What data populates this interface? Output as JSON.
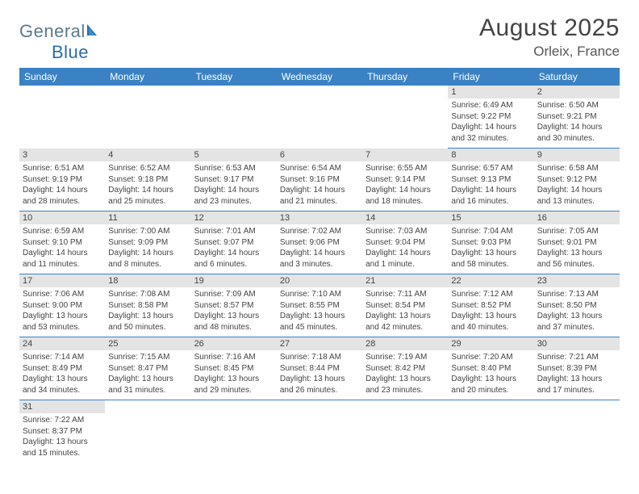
{
  "brand": {
    "name_part1": "General",
    "name_part2": "Blue"
  },
  "header": {
    "title": "August 2025",
    "location": "Orleix, France"
  },
  "colors": {
    "header_bg": "#3a82c4",
    "header_text": "#ffffff",
    "daynum_bg": "#e4e4e4",
    "cell_border": "#3a82c4",
    "body_text": "#444444",
    "logo_gray": "#5a7a8c",
    "logo_blue": "#2a6da8"
  },
  "weekdays": [
    "Sunday",
    "Monday",
    "Tuesday",
    "Wednesday",
    "Thursday",
    "Friday",
    "Saturday"
  ],
  "weeks": [
    [
      null,
      null,
      null,
      null,
      null,
      {
        "n": "1",
        "sr": "6:49 AM",
        "ss": "9:22 PM",
        "dl": "14 hours and 32 minutes."
      },
      {
        "n": "2",
        "sr": "6:50 AM",
        "ss": "9:21 PM",
        "dl": "14 hours and 30 minutes."
      }
    ],
    [
      {
        "n": "3",
        "sr": "6:51 AM",
        "ss": "9:19 PM",
        "dl": "14 hours and 28 minutes."
      },
      {
        "n": "4",
        "sr": "6:52 AM",
        "ss": "9:18 PM",
        "dl": "14 hours and 25 minutes."
      },
      {
        "n": "5",
        "sr": "6:53 AM",
        "ss": "9:17 PM",
        "dl": "14 hours and 23 minutes."
      },
      {
        "n": "6",
        "sr": "6:54 AM",
        "ss": "9:16 PM",
        "dl": "14 hours and 21 minutes."
      },
      {
        "n": "7",
        "sr": "6:55 AM",
        "ss": "9:14 PM",
        "dl": "14 hours and 18 minutes."
      },
      {
        "n": "8",
        "sr": "6:57 AM",
        "ss": "9:13 PM",
        "dl": "14 hours and 16 minutes."
      },
      {
        "n": "9",
        "sr": "6:58 AM",
        "ss": "9:12 PM",
        "dl": "14 hours and 13 minutes."
      }
    ],
    [
      {
        "n": "10",
        "sr": "6:59 AM",
        "ss": "9:10 PM",
        "dl": "14 hours and 11 minutes."
      },
      {
        "n": "11",
        "sr": "7:00 AM",
        "ss": "9:09 PM",
        "dl": "14 hours and 8 minutes."
      },
      {
        "n": "12",
        "sr": "7:01 AM",
        "ss": "9:07 PM",
        "dl": "14 hours and 6 minutes."
      },
      {
        "n": "13",
        "sr": "7:02 AM",
        "ss": "9:06 PM",
        "dl": "14 hours and 3 minutes."
      },
      {
        "n": "14",
        "sr": "7:03 AM",
        "ss": "9:04 PM",
        "dl": "14 hours and 1 minute."
      },
      {
        "n": "15",
        "sr": "7:04 AM",
        "ss": "9:03 PM",
        "dl": "13 hours and 58 minutes."
      },
      {
        "n": "16",
        "sr": "7:05 AM",
        "ss": "9:01 PM",
        "dl": "13 hours and 56 minutes."
      }
    ],
    [
      {
        "n": "17",
        "sr": "7:06 AM",
        "ss": "9:00 PM",
        "dl": "13 hours and 53 minutes."
      },
      {
        "n": "18",
        "sr": "7:08 AM",
        "ss": "8:58 PM",
        "dl": "13 hours and 50 minutes."
      },
      {
        "n": "19",
        "sr": "7:09 AM",
        "ss": "8:57 PM",
        "dl": "13 hours and 48 minutes."
      },
      {
        "n": "20",
        "sr": "7:10 AM",
        "ss": "8:55 PM",
        "dl": "13 hours and 45 minutes."
      },
      {
        "n": "21",
        "sr": "7:11 AM",
        "ss": "8:54 PM",
        "dl": "13 hours and 42 minutes."
      },
      {
        "n": "22",
        "sr": "7:12 AM",
        "ss": "8:52 PM",
        "dl": "13 hours and 40 minutes."
      },
      {
        "n": "23",
        "sr": "7:13 AM",
        "ss": "8:50 PM",
        "dl": "13 hours and 37 minutes."
      }
    ],
    [
      {
        "n": "24",
        "sr": "7:14 AM",
        "ss": "8:49 PM",
        "dl": "13 hours and 34 minutes."
      },
      {
        "n": "25",
        "sr": "7:15 AM",
        "ss": "8:47 PM",
        "dl": "13 hours and 31 minutes."
      },
      {
        "n": "26",
        "sr": "7:16 AM",
        "ss": "8:45 PM",
        "dl": "13 hours and 29 minutes."
      },
      {
        "n": "27",
        "sr": "7:18 AM",
        "ss": "8:44 PM",
        "dl": "13 hours and 26 minutes."
      },
      {
        "n": "28",
        "sr": "7:19 AM",
        "ss": "8:42 PM",
        "dl": "13 hours and 23 minutes."
      },
      {
        "n": "29",
        "sr": "7:20 AM",
        "ss": "8:40 PM",
        "dl": "13 hours and 20 minutes."
      },
      {
        "n": "30",
        "sr": "7:21 AM",
        "ss": "8:39 PM",
        "dl": "13 hours and 17 minutes."
      }
    ],
    [
      {
        "n": "31",
        "sr": "7:22 AM",
        "ss": "8:37 PM",
        "dl": "13 hours and 15 minutes."
      },
      null,
      null,
      null,
      null,
      null,
      null
    ]
  ],
  "labels": {
    "sunrise": "Sunrise:",
    "sunset": "Sunset:",
    "daylight": "Daylight:"
  }
}
